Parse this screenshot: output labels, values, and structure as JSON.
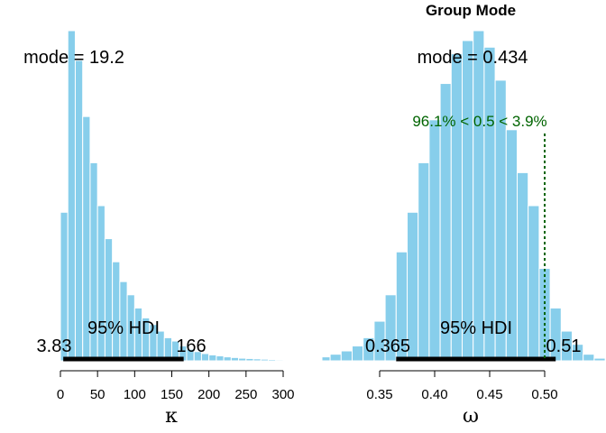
{
  "chart_data": [
    {
      "type": "bar",
      "title": "",
      "xlabel": "κ",
      "ylabel": "",
      "xlim": [
        0,
        310
      ],
      "ylim": [
        0,
        1
      ],
      "x_ticks": [
        0,
        50,
        100,
        150,
        200,
        250,
        300
      ],
      "bin_width": 10,
      "bin_starts": [
        0,
        10,
        20,
        30,
        40,
        50,
        60,
        70,
        80,
        90,
        100,
        110,
        120,
        130,
        140,
        150,
        160,
        170,
        180,
        190,
        200,
        210,
        220,
        230,
        240,
        250,
        260,
        270,
        280,
        290,
        300
      ],
      "values": [
        0.45,
        1.0,
        0.91,
        0.74,
        0.6,
        0.47,
        0.37,
        0.3,
        0.24,
        0.2,
        0.16,
        0.13,
        0.11,
        0.09,
        0.07,
        0.06,
        0.045,
        0.035,
        0.028,
        0.022,
        0.018,
        0.015,
        0.012,
        0.01,
        0.008,
        0.007,
        0.006,
        0.005,
        0.004,
        0.003,
        0.002
      ],
      "bar_color": "#87ceeb",
      "mode_text": "mode = 19.2",
      "hdi_label": "95% HDI",
      "hdi_low": 3.83,
      "hdi_high": 166,
      "hdi_low_text": "3.83",
      "hdi_high_text": "166"
    },
    {
      "type": "bar",
      "title": "Group Mode",
      "xlabel": "ω",
      "ylabel": "",
      "xlim": [
        0.285,
        0.545
      ],
      "ylim": [
        0,
        1
      ],
      "x_ticks": [
        0.35,
        0.4,
        0.45,
        0.5
      ],
      "x_tick_labels": [
        "0.35",
        "0.40",
        "0.45",
        "0.50"
      ],
      "bin_width": 0.01,
      "bin_starts": [
        0.255,
        0.265,
        0.275,
        0.285,
        0.295,
        0.305,
        0.315,
        0.325,
        0.335,
        0.345,
        0.355,
        0.365,
        0.375,
        0.385,
        0.395,
        0.405,
        0.415,
        0.425,
        0.435,
        0.445,
        0.455,
        0.465,
        0.475,
        0.485,
        0.495,
        0.505,
        0.515,
        0.525,
        0.535,
        0.545
      ],
      "values": [
        0.003,
        0.004,
        0.006,
        0.008,
        0.012,
        0.02,
        0.03,
        0.045,
        0.07,
        0.12,
        0.2,
        0.33,
        0.45,
        0.6,
        0.73,
        0.84,
        0.93,
        0.97,
        1.0,
        0.95,
        0.85,
        0.7,
        0.57,
        0.47,
        0.28,
        0.16,
        0.09,
        0.05,
        0.02,
        0.008
      ],
      "bar_color": "#87ceeb",
      "mode_text": "mode = 0.434",
      "hdi_label": "95% HDI",
      "hdi_low": 0.365,
      "hdi_high": 0.51,
      "hdi_low_text": "0.365",
      "hdi_high_text": "0.51",
      "comparison_value": 0.5,
      "comparison_text": "96.1% < 0.5 < 3.9%",
      "comparison_color": "#006400"
    }
  ]
}
